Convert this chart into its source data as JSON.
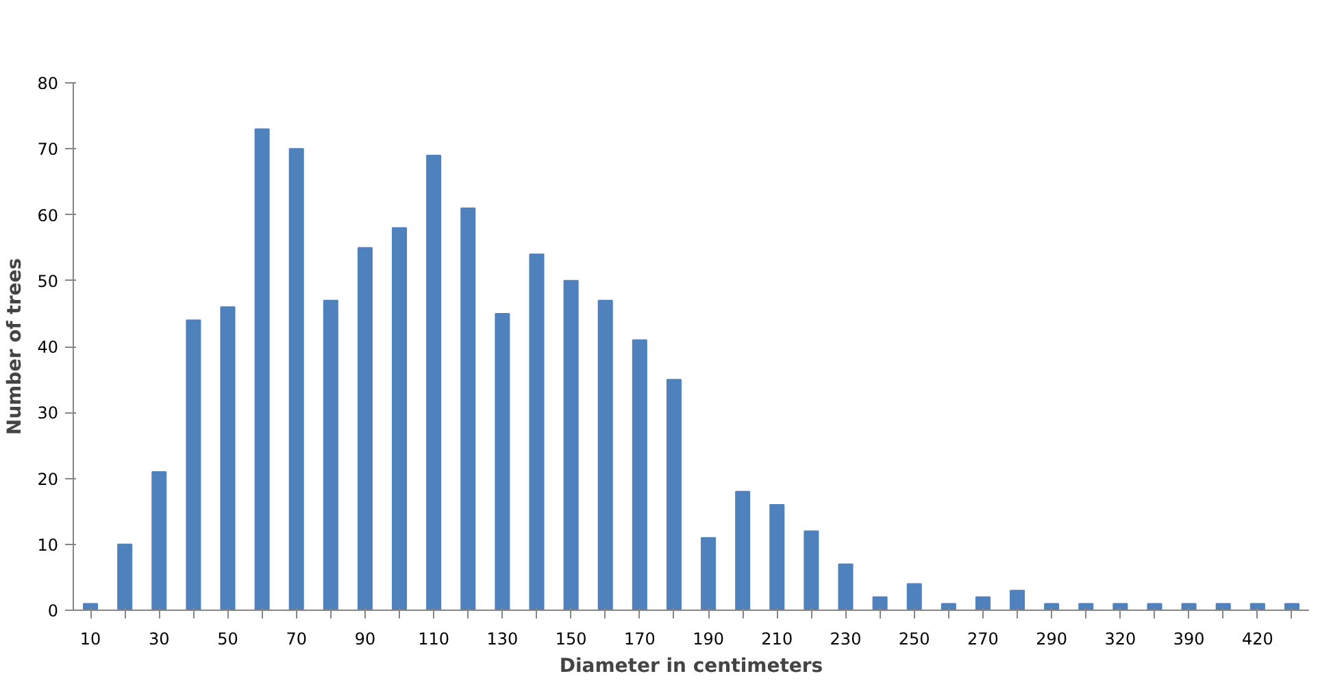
{
  "chart_data": {
    "type": "bar",
    "xlabel": "Diameter in centimeters",
    "ylabel": "Number of trees",
    "categories": [
      "10",
      null,
      "30",
      null,
      "50",
      null,
      "70",
      null,
      "90",
      null,
      "110",
      null,
      "130",
      null,
      "150",
      null,
      "170",
      null,
      "190",
      null,
      "210",
      null,
      "230",
      null,
      "250",
      null,
      "270",
      null,
      "290",
      null,
      "320",
      null,
      "390",
      null,
      "420",
      null
    ],
    "values": [
      1,
      10,
      21,
      44,
      46,
      73,
      70,
      47,
      55,
      58,
      69,
      61,
      45,
      54,
      50,
      47,
      41,
      35,
      11,
      18,
      16,
      12,
      7,
      2,
      4,
      1,
      2,
      3,
      1,
      1,
      1,
      1,
      1,
      1,
      1,
      1
    ],
    "color": "#4f81bd",
    "ylim": [
      0,
      80
    ],
    "yticks": [
      0,
      10,
      20,
      30,
      40,
      50,
      60,
      70,
      80
    ],
    "grid": false
  }
}
